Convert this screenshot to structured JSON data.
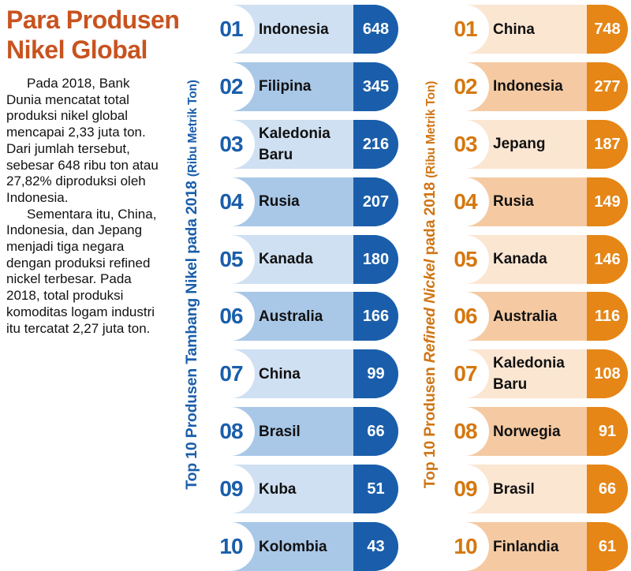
{
  "headline": "Para Produsen Nikel Global",
  "paragraphs": [
    "Pada 2018, Bank Dunia mencatat total produksi nikel global mencapai 2,33 juta ton. Dari jumlah tersebut, sebesar 648 ribu ton atau 27,82% diproduksi oleh Indonesia.",
    "Sementara itu, China, Indonesia, dan Jepang menjadi tiga negara dengan produksi refined nickel terbesar. Pada 2018, total produksi komoditas logam industri itu tercatat 2,27 juta ton."
  ],
  "colors": {
    "mine_accent": "#1a5eab",
    "refined_accent": "#e58617",
    "headline": "#c8531f"
  },
  "chart_data": [
    {
      "type": "table",
      "title_pre": "Top 10 Produsen Tambang Nikel pada 2018",
      "title_em": "",
      "title_post": "",
      "unit": "(Ribu Metrik Ton)",
      "ranks": [
        "01",
        "02",
        "03",
        "04",
        "05",
        "06",
        "07",
        "08",
        "09",
        "10"
      ],
      "categories": [
        "Indonesia",
        "Filipina",
        "Kaledonia\nBaru",
        "Rusia",
        "Kanada",
        "Australia",
        "China",
        "Brasil",
        "Kuba",
        "Kolombia"
      ],
      "values": [
        648,
        345,
        216,
        207,
        180,
        166,
        99,
        66,
        51,
        43
      ]
    },
    {
      "type": "table",
      "title_pre": "Top 10 Produsen ",
      "title_em": "Refined Nickel",
      "title_post": " pada 2018",
      "unit": "(Ribu Metrik Ton)",
      "ranks": [
        "01",
        "02",
        "03",
        "04",
        "05",
        "06",
        "07",
        "08",
        "09",
        "10"
      ],
      "categories": [
        "China",
        "Indonesia",
        "Jepang",
        "Rusia",
        "Kanada",
        "Australia",
        "Kaledonia\nBaru",
        "Norwegia",
        "Brasil",
        "Finlandia"
      ],
      "values": [
        748,
        277,
        187,
        149,
        146,
        116,
        108,
        91,
        66,
        61
      ]
    }
  ]
}
